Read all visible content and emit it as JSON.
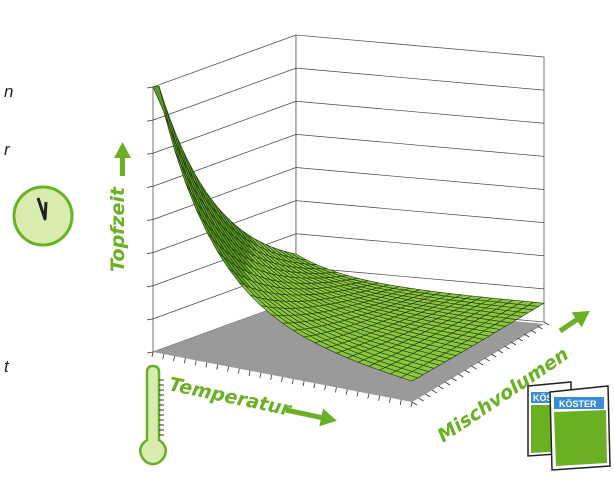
{
  "chart_data": {
    "type": "surface",
    "title": "",
    "axes": {
      "z_label": "Topfzeit",
      "x_label": "Temperatur",
      "y_label": "Mischvolumen",
      "ticks_shown": false,
      "grid": true
    },
    "surface": {
      "description_values": "relative pot life (z) decreasing with temperature and mixing volume",
      "grid_resolution": 24,
      "z_range": [
        0,
        1
      ]
    },
    "colors": {
      "surface": "#8cc63f",
      "surface_dark": "#5e9a22",
      "mesh": "#1e3a0a",
      "floor": "#9a9a9a",
      "axis_label": "#6ab023",
      "clock_fill": "#d8ecb0",
      "clock_ring": "#6ab023",
      "thermo_fill": "#d8ecb0",
      "box_green": "#6ab023",
      "box_label": "#3a8cd6"
    },
    "icons": [
      "clock-icon",
      "thermometer-icon",
      "product-buckets-icon",
      "arrow-up-icon",
      "arrow-right-icon",
      "arrow-diagonal-icon"
    ]
  },
  "labels": {
    "left_fragment_1": "n",
    "left_fragment_2": "r",
    "left_fragment_3": "t",
    "box_brand_1": "KÖSTER",
    "box_brand_2": "KÖSTER"
  }
}
